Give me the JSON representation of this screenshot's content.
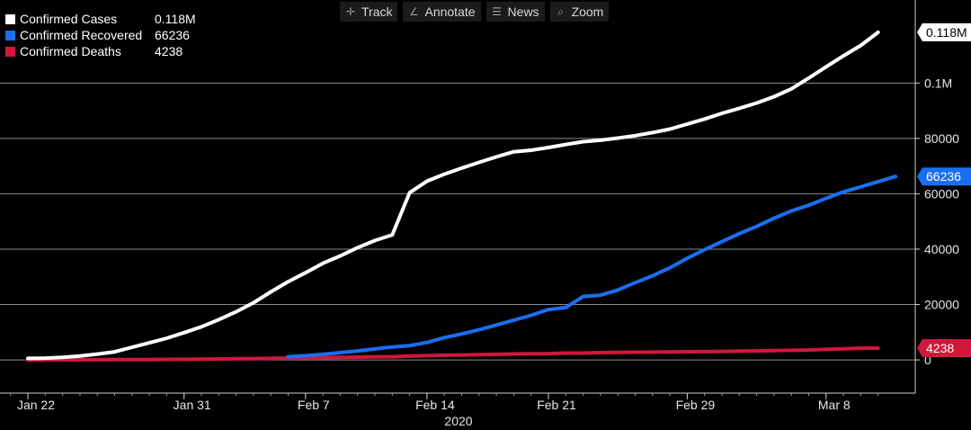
{
  "toolbar": {
    "items": [
      {
        "label": "Track",
        "icon": "crosshair-icon"
      },
      {
        "label": "Annotate",
        "icon": "pencil-icon"
      },
      {
        "label": "News",
        "icon": "news-icon"
      },
      {
        "label": "Zoom",
        "icon": "magnifier-icon"
      }
    ]
  },
  "legend": [
    {
      "name": "Confirmed Cases",
      "value": "0.118M",
      "color": "#ffffff"
    },
    {
      "name": "Confirmed Recovered",
      "value": "66236",
      "color": "#1a6ff0"
    },
    {
      "name": "Confirmed Deaths",
      "value": "4238",
      "color": "#d0183a"
    }
  ],
  "chart_data": {
    "type": "line",
    "xlabel": "2020",
    "x_ticks": [
      {
        "day": 0,
        "label": "Jan 22"
      },
      {
        "day": 9,
        "label": "Jan 31"
      },
      {
        "day": 16,
        "label": "Feb 7"
      },
      {
        "day": 23,
        "label": "Feb 14"
      },
      {
        "day": 30,
        "label": "Feb 21"
      },
      {
        "day": 38,
        "label": "Feb 29"
      },
      {
        "day": 46,
        "label": "Mar 8"
      }
    ],
    "xlim_days": [
      -2,
      49
    ],
    "ylim": [
      -12000,
      130000
    ],
    "y_ticks": [
      {
        "value": 0,
        "label": "0"
      },
      {
        "value": 20000,
        "label": "20000"
      },
      {
        "value": 40000,
        "label": "40000"
      },
      {
        "value": 60000,
        "label": "60000"
      },
      {
        "value": 80000,
        "label": "80000"
      },
      {
        "value": 100000,
        "label": "0.1M"
      }
    ],
    "grid": true,
    "legend_position": "top-left",
    "series": [
      {
        "name": "Confirmed Cases",
        "color": "#ffffff",
        "last_label": "0.118M",
        "values": [
          555,
          654,
          941,
          1434,
          2118,
          2927,
          4538,
          6149,
          7819,
          9830,
          11951,
          14555,
          17391,
          20630,
          24554,
          28276,
          31481,
          34886,
          37558,
          40554,
          43103,
          45171,
          60384,
          64543,
          67103,
          69265,
          71332,
          73327,
          75191,
          75723,
          76719,
          77804,
          78812,
          79339,
          80132,
          80995,
          82101,
          83365,
          85203,
          87024,
          89068,
          90869,
          92793,
          95082,
          97886,
          101800,
          105847,
          109821,
          113590,
          118327
        ]
      },
      {
        "name": "Confirmed Recovered",
        "color": "#1a6ff0",
        "last_label": "66236",
        "start_day": 15,
        "values": [
          1124,
          1487,
          2011,
          2616,
          3244,
          3946,
          4683,
          5150,
          6295,
          8058,
          9395,
          10865,
          12583,
          14352,
          16121,
          18177,
          18890,
          22886,
          23394,
          25227,
          27905,
          30384,
          33277,
          36711,
          39782,
          42716,
          45602,
          48228,
          51170,
          53796,
          55866,
          58359,
          60694,
          62494,
          64404,
          66236
        ]
      },
      {
        "name": "Confirmed Deaths",
        "color": "#d0183a",
        "last_label": "4238",
        "values": [
          17,
          18,
          26,
          42,
          56,
          82,
          131,
          133,
          171,
          213,
          259,
          362,
          426,
          492,
          564,
          634,
          719,
          806,
          906,
          1013,
          1113,
          1118,
          1371,
          1523,
          1666,
          1770,
          1868,
          2007,
          2122,
          2247,
          2251,
          2458,
          2469,
          2629,
          2708,
          2770,
          2814,
          2872,
          2941,
          2996,
          3085,
          3160,
          3254,
          3348,
          3460,
          3558,
          3802,
          3988,
          4262,
          4238
        ]
      }
    ]
  }
}
